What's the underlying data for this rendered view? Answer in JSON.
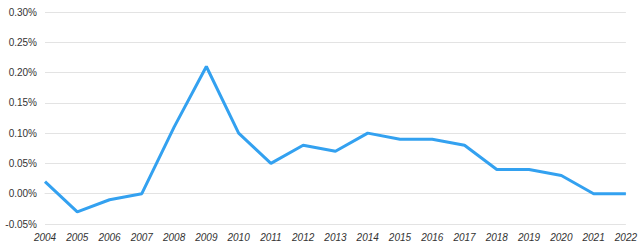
{
  "chart_data": {
    "type": "line",
    "categories": [
      "2004",
      "2005",
      "2006",
      "2007",
      "2008",
      "2009",
      "2010",
      "2011",
      "2012",
      "2013",
      "2014",
      "2015",
      "2016",
      "2017",
      "2018",
      "2019",
      "2020",
      "2021",
      "2022"
    ],
    "values": [
      0.02,
      -0.03,
      -0.01,
      0.0,
      0.11,
      0.21,
      0.1,
      0.05,
      0.08,
      0.07,
      0.1,
      0.09,
      0.09,
      0.08,
      0.04,
      0.04,
      0.03,
      0.0,
      0.0
    ],
    "color": "#33a1f0",
    "ylim": [
      -0.05,
      0.3
    ],
    "yticks": [
      {
        "value": -0.05,
        "label": "-0.05%"
      },
      {
        "value": 0,
        "label": "0.00%"
      },
      {
        "value": 0.05,
        "label": "0.05%"
      },
      {
        "value": 0.1,
        "label": "0.10%"
      },
      {
        "value": 0.15,
        "label": "0.15%"
      },
      {
        "value": 0.2,
        "label": "0.20%"
      },
      {
        "value": 0.25,
        "label": "0.25%"
      },
      {
        "value": 0.3,
        "label": "0.30%"
      }
    ],
    "grid": true
  }
}
